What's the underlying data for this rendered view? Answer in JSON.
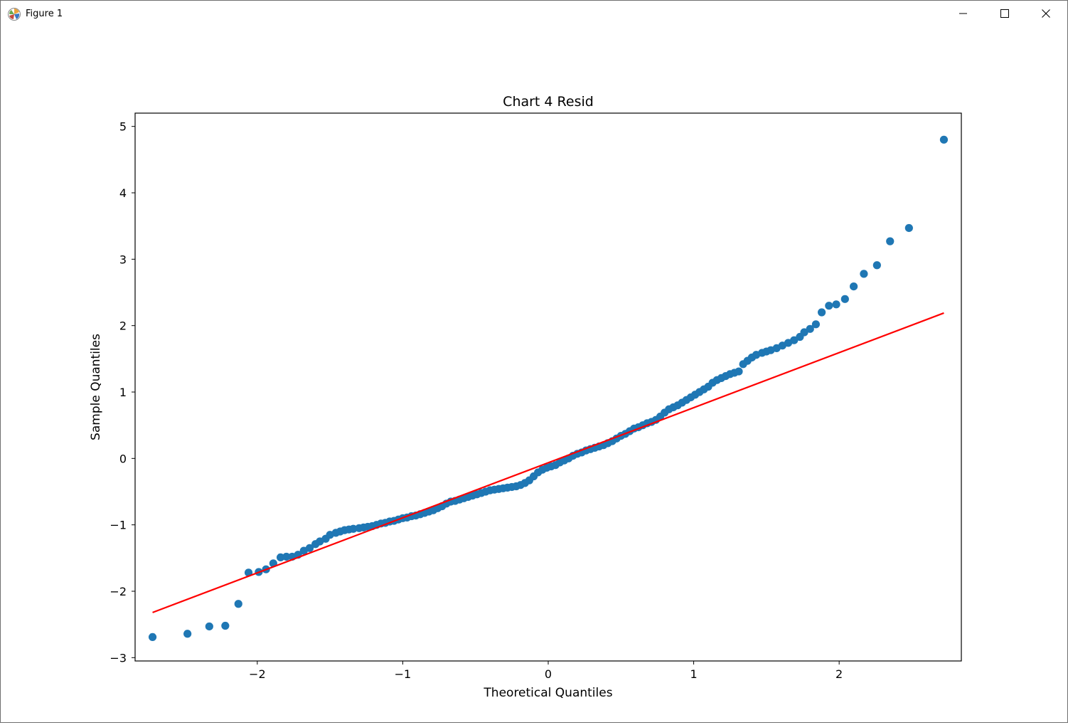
{
  "window": {
    "title": "Figure 1",
    "controls": {
      "minimize": "minimize",
      "maximize": "maximize",
      "close": "close"
    }
  },
  "chart_data": {
    "type": "scatter",
    "title": "Chart 4 Resid",
    "xlabel": "Theoretical Quantiles",
    "ylabel": "Sample Quantiles",
    "xlim": [
      -2.84,
      2.84
    ],
    "ylim": [
      -3.05,
      5.2
    ],
    "xticks": [
      -2,
      -1,
      0,
      1,
      2
    ],
    "xtick_labels": [
      "−2",
      "−1",
      "0",
      "1",
      "2"
    ],
    "yticks": [
      -3,
      -2,
      -1,
      0,
      1,
      2,
      3,
      4,
      5
    ],
    "ytick_labels": [
      "−3",
      "−2",
      "−1",
      "0",
      "1",
      "2",
      "3",
      "4",
      "5"
    ],
    "grid": false,
    "marker_color": "#1f77b4",
    "line_color": "#ff0000",
    "series": [
      {
        "type": "scatter",
        "points": [
          [
            -2.72,
            -2.69
          ],
          [
            -2.48,
            -2.64
          ],
          [
            -2.33,
            -2.53
          ],
          [
            -2.22,
            -2.52
          ],
          [
            -2.13,
            -2.19
          ],
          [
            -2.06,
            -1.72
          ],
          [
            -1.99,
            -1.71
          ],
          [
            -1.94,
            -1.67
          ],
          [
            -1.89,
            -1.58
          ],
          [
            -1.84,
            -1.49
          ],
          [
            -1.8,
            -1.48
          ],
          [
            -1.76,
            -1.48
          ],
          [
            -1.72,
            -1.45
          ],
          [
            -1.68,
            -1.39
          ],
          [
            -1.64,
            -1.35
          ],
          [
            -1.6,
            -1.29
          ],
          [
            -1.57,
            -1.25
          ],
          [
            -1.53,
            -1.21
          ],
          [
            -1.5,
            -1.15
          ],
          [
            -1.46,
            -1.12
          ],
          [
            -1.43,
            -1.1
          ],
          [
            -1.4,
            -1.08
          ],
          [
            -1.37,
            -1.07
          ],
          [
            -1.34,
            -1.06
          ],
          [
            -1.3,
            -1.05
          ],
          [
            -1.27,
            -1.04
          ],
          [
            -1.24,
            -1.03
          ],
          [
            -1.21,
            -1.02
          ],
          [
            -1.18,
            -1.0
          ],
          [
            -1.15,
            -0.98
          ],
          [
            -1.12,
            -0.97
          ],
          [
            -1.09,
            -0.95
          ],
          [
            -1.06,
            -0.94
          ],
          [
            -1.03,
            -0.92
          ],
          [
            -1.0,
            -0.9
          ],
          [
            -0.97,
            -0.89
          ],
          [
            -0.94,
            -0.87
          ],
          [
            -0.91,
            -0.86
          ],
          [
            -0.88,
            -0.84
          ],
          [
            -0.85,
            -0.82
          ],
          [
            -0.82,
            -0.8
          ],
          [
            -0.79,
            -0.78
          ],
          [
            -0.76,
            -0.75
          ],
          [
            -0.73,
            -0.72
          ],
          [
            -0.7,
            -0.68
          ],
          [
            -0.67,
            -0.65
          ],
          [
            -0.64,
            -0.64
          ],
          [
            -0.61,
            -0.62
          ],
          [
            -0.58,
            -0.6
          ],
          [
            -0.55,
            -0.58
          ],
          [
            -0.52,
            -0.56
          ],
          [
            -0.49,
            -0.54
          ],
          [
            -0.46,
            -0.52
          ],
          [
            -0.43,
            -0.5
          ],
          [
            -0.4,
            -0.48
          ],
          [
            -0.37,
            -0.47
          ],
          [
            -0.34,
            -0.46
          ],
          [
            -0.31,
            -0.45
          ],
          [
            -0.28,
            -0.44
          ],
          [
            -0.25,
            -0.43
          ],
          [
            -0.22,
            -0.42
          ],
          [
            -0.19,
            -0.4
          ],
          [
            -0.16,
            -0.37
          ],
          [
            -0.13,
            -0.33
          ],
          [
            -0.1,
            -0.27
          ],
          [
            -0.07,
            -0.21
          ],
          [
            -0.04,
            -0.17
          ],
          [
            -0.01,
            -0.14
          ],
          [
            0.02,
            -0.12
          ],
          [
            0.05,
            -0.1
          ],
          [
            0.08,
            -0.06
          ],
          [
            0.11,
            -0.03
          ],
          [
            0.14,
            0.0
          ],
          [
            0.17,
            0.04
          ],
          [
            0.2,
            0.07
          ],
          [
            0.23,
            0.09
          ],
          [
            0.26,
            0.12
          ],
          [
            0.29,
            0.14
          ],
          [
            0.32,
            0.16
          ],
          [
            0.35,
            0.18
          ],
          [
            0.38,
            0.2
          ],
          [
            0.41,
            0.23
          ],
          [
            0.44,
            0.26
          ],
          [
            0.47,
            0.3
          ],
          [
            0.5,
            0.34
          ],
          [
            0.53,
            0.37
          ],
          [
            0.56,
            0.41
          ],
          [
            0.59,
            0.45
          ],
          [
            0.62,
            0.47
          ],
          [
            0.65,
            0.5
          ],
          [
            0.68,
            0.53
          ],
          [
            0.71,
            0.55
          ],
          [
            0.74,
            0.58
          ],
          [
            0.77,
            0.63
          ],
          [
            0.8,
            0.69
          ],
          [
            0.83,
            0.74
          ],
          [
            0.86,
            0.77
          ],
          [
            0.89,
            0.8
          ],
          [
            0.92,
            0.84
          ],
          [
            0.95,
            0.88
          ],
          [
            0.98,
            0.92
          ],
          [
            1.01,
            0.96
          ],
          [
            1.04,
            1.0
          ],
          [
            1.07,
            1.04
          ],
          [
            1.1,
            1.08
          ],
          [
            1.13,
            1.14
          ],
          [
            1.16,
            1.18
          ],
          [
            1.19,
            1.21
          ],
          [
            1.22,
            1.24
          ],
          [
            1.25,
            1.27
          ],
          [
            1.28,
            1.29
          ],
          [
            1.31,
            1.31
          ],
          [
            1.34,
            1.42
          ],
          [
            1.37,
            1.47
          ],
          [
            1.4,
            1.52
          ],
          [
            1.43,
            1.56
          ],
          [
            1.47,
            1.59
          ],
          [
            1.5,
            1.61
          ],
          [
            1.53,
            1.63
          ],
          [
            1.57,
            1.66
          ],
          [
            1.61,
            1.7
          ],
          [
            1.65,
            1.74
          ],
          [
            1.69,
            1.78
          ],
          [
            1.73,
            1.83
          ],
          [
            1.76,
            1.9
          ],
          [
            1.8,
            1.95
          ],
          [
            1.84,
            2.02
          ],
          [
            1.88,
            2.2
          ],
          [
            1.93,
            2.3
          ],
          [
            1.98,
            2.32
          ],
          [
            2.04,
            2.4
          ],
          [
            2.1,
            2.59
          ],
          [
            2.17,
            2.78
          ],
          [
            2.26,
            2.91
          ],
          [
            2.35,
            3.27
          ],
          [
            2.48,
            3.47
          ],
          [
            2.72,
            4.8
          ]
        ]
      },
      {
        "type": "line",
        "points": [
          [
            -2.72,
            -2.32
          ],
          [
            2.72,
            2.19
          ]
        ]
      }
    ]
  }
}
